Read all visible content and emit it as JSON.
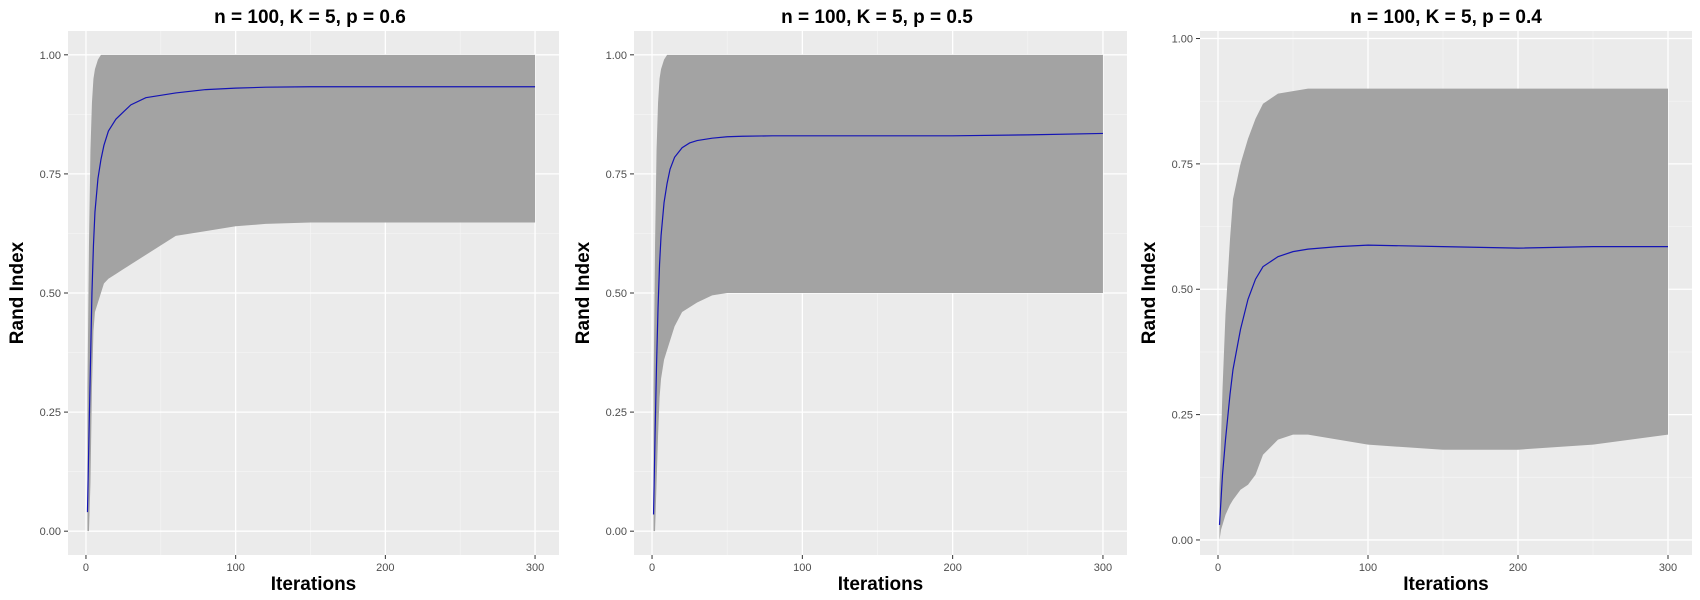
{
  "colors": {
    "panel_bg": "#ebebeb",
    "grid_major": "#ffffff",
    "grid_minor": "#f5f5f5",
    "ribbon": "#a3a3a3",
    "line": "#1414b4",
    "tick": "#333333"
  },
  "chart_data": [
    {
      "type": "area",
      "title": "n = 100, K = 5, p = 0.6",
      "xlabel": "Iterations",
      "ylabel": "Rand Index",
      "xlim": [
        -12,
        316
      ],
      "ylim": [
        -0.05,
        1.05
      ],
      "x_ticks": [
        0,
        100,
        200,
        300
      ],
      "x_tick_labels": [
        "0",
        "100",
        "200",
        "300"
      ],
      "y_ticks": [
        0.0,
        0.25,
        0.5,
        0.75,
        1.0
      ],
      "y_tick_labels": [
        "0.00",
        "0.25",
        "0.50",
        "0.75",
        "1.00"
      ],
      "grid": true,
      "legend": "none",
      "series": [
        {
          "x": [
            1,
            2,
            3,
            4,
            5,
            6,
            8,
            10,
            12,
            15,
            20,
            25,
            30,
            40,
            50,
            60,
            80,
            100,
            120,
            150,
            200,
            250,
            300
          ],
          "mean": [
            0.04,
            0.2,
            0.35,
            0.5,
            0.6,
            0.67,
            0.74,
            0.78,
            0.81,
            0.84,
            0.865,
            0.88,
            0.895,
            0.91,
            0.915,
            0.92,
            0.927,
            0.93,
            0.932,
            0.933,
            0.933,
            0.933,
            0.933
          ],
          "upper": [
            0.3,
            0.6,
            0.8,
            0.9,
            0.95,
            0.97,
            0.99,
            1.0,
            1.0,
            1.0,
            1.0,
            1.0,
            1.0,
            1.0,
            1.0,
            1.0,
            1.0,
            1.0,
            1.0,
            1.0,
            1.0,
            1.0,
            1.0
          ],
          "lower": [
            0.0,
            0.0,
            0.1,
            0.3,
            0.42,
            0.46,
            0.48,
            0.5,
            0.52,
            0.53,
            0.54,
            0.55,
            0.56,
            0.58,
            0.6,
            0.62,
            0.63,
            0.64,
            0.645,
            0.648,
            0.648,
            0.648,
            0.648
          ]
        }
      ]
    },
    {
      "type": "area",
      "title": "n = 100, K = 5, p = 0.5",
      "xlabel": "Iterations",
      "ylabel": "Rand Index",
      "xlim": [
        -12,
        316
      ],
      "ylim": [
        -0.05,
        1.05
      ],
      "x_ticks": [
        0,
        100,
        200,
        300
      ],
      "x_tick_labels": [
        "0",
        "100",
        "200",
        "300"
      ],
      "y_ticks": [
        0.0,
        0.25,
        0.5,
        0.75,
        1.0
      ],
      "y_tick_labels": [
        "0.00",
        "0.25",
        "0.50",
        "0.75",
        "1.00"
      ],
      "grid": true,
      "legend": "none",
      "series": [
        {
          "x": [
            1,
            2,
            3,
            4,
            5,
            6,
            8,
            10,
            12,
            15,
            20,
            25,
            30,
            40,
            50,
            60,
            80,
            100,
            150,
            200,
            250,
            300
          ],
          "mean": [
            0.035,
            0.2,
            0.35,
            0.47,
            0.56,
            0.62,
            0.69,
            0.73,
            0.76,
            0.785,
            0.805,
            0.815,
            0.82,
            0.825,
            0.828,
            0.829,
            0.83,
            0.83,
            0.83,
            0.83,
            0.832,
            0.835
          ],
          "upper": [
            0.3,
            0.6,
            0.8,
            0.9,
            0.95,
            0.97,
            0.99,
            1.0,
            1.0,
            1.0,
            1.0,
            1.0,
            1.0,
            1.0,
            1.0,
            1.0,
            1.0,
            1.0,
            1.0,
            1.0,
            1.0,
            1.0
          ],
          "lower": [
            0.0,
            0.0,
            0.1,
            0.2,
            0.28,
            0.32,
            0.36,
            0.38,
            0.4,
            0.43,
            0.46,
            0.47,
            0.48,
            0.495,
            0.5,
            0.5,
            0.5,
            0.5,
            0.5,
            0.5,
            0.5,
            0.5
          ]
        }
      ]
    },
    {
      "type": "area",
      "title": "n = 100, K = 5, p = 0.4",
      "xlabel": "Iterations",
      "ylabel": "Rand Index",
      "xlim": [
        -12,
        316
      ],
      "ylim": [
        -0.03,
        1.015
      ],
      "x_ticks": [
        0,
        100,
        200,
        300
      ],
      "x_tick_labels": [
        "0",
        "100",
        "200",
        "300"
      ],
      "y_ticks": [
        0.0,
        0.25,
        0.5,
        0.75,
        1.0
      ],
      "y_tick_labels": [
        "0.00",
        "0.25",
        "0.50",
        "0.75",
        "1.00"
      ],
      "grid": true,
      "legend": "none",
      "series": [
        {
          "x": [
            1,
            2,
            3,
            5,
            8,
            10,
            15,
            20,
            25,
            30,
            40,
            50,
            60,
            80,
            100,
            150,
            200,
            250,
            300
          ],
          "mean": [
            0.03,
            0.08,
            0.13,
            0.2,
            0.29,
            0.34,
            0.42,
            0.48,
            0.52,
            0.545,
            0.565,
            0.575,
            0.58,
            0.585,
            0.588,
            0.585,
            0.582,
            0.585,
            0.585
          ],
          "upper": [
            0.1,
            0.2,
            0.3,
            0.45,
            0.6,
            0.68,
            0.75,
            0.8,
            0.84,
            0.87,
            0.89,
            0.895,
            0.9,
            0.9,
            0.9,
            0.9,
            0.9,
            0.9,
            0.9
          ],
          "lower": [
            0.0,
            0.02,
            0.03,
            0.05,
            0.07,
            0.08,
            0.1,
            0.11,
            0.13,
            0.17,
            0.2,
            0.21,
            0.21,
            0.2,
            0.19,
            0.18,
            0.18,
            0.19,
            0.21
          ]
        }
      ]
    }
  ]
}
